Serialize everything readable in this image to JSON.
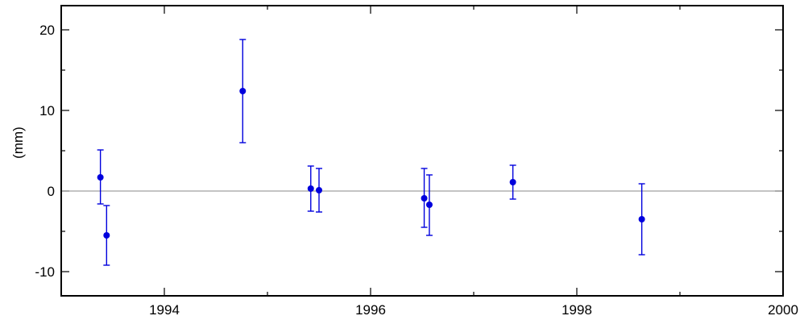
{
  "chart_data": {
    "type": "scatter",
    "title": "",
    "xlabel": "",
    "ylabel": "(mm)",
    "xlim": [
      1993,
      2000
    ],
    "ylim": [
      -13,
      23
    ],
    "x_major_ticks": [
      1994,
      1996,
      1998,
      2000
    ],
    "x_minor_ticks": [
      1993,
      1995,
      1997,
      1999
    ],
    "y_major_ticks": [
      -10,
      0,
      10,
      20
    ],
    "y_minor_ticks": [
      -5,
      5,
      15
    ],
    "x_tick_labels": [
      "1994",
      "1996",
      "1998",
      "2000"
    ],
    "y_tick_labels": [
      "-10",
      "0",
      "10",
      "20"
    ],
    "grid": false,
    "reference_line_y": 0,
    "colors": {
      "points": "#0000dd",
      "reference_line": "#888888",
      "axes": "#000000"
    },
    "points": [
      {
        "x": 1993.38,
        "y": 1.7,
        "lo": -1.6,
        "hi": 5.1
      },
      {
        "x": 1993.44,
        "y": -5.5,
        "lo": -9.2,
        "hi": -1.8
      },
      {
        "x": 1994.76,
        "y": 12.4,
        "lo": 6.0,
        "hi": 18.8
      },
      {
        "x": 1995.42,
        "y": 0.3,
        "lo": -2.5,
        "hi": 3.1
      },
      {
        "x": 1995.5,
        "y": 0.1,
        "lo": -2.6,
        "hi": 2.8
      },
      {
        "x": 1996.52,
        "y": -0.9,
        "lo": -4.5,
        "hi": 2.8
      },
      {
        "x": 1996.57,
        "y": -1.7,
        "lo": -5.5,
        "hi": 2.0
      },
      {
        "x": 1997.38,
        "y": 1.1,
        "lo": -1.0,
        "hi": 3.2
      },
      {
        "x": 1998.63,
        "y": -3.5,
        "lo": -7.9,
        "hi": 0.9
      }
    ]
  }
}
